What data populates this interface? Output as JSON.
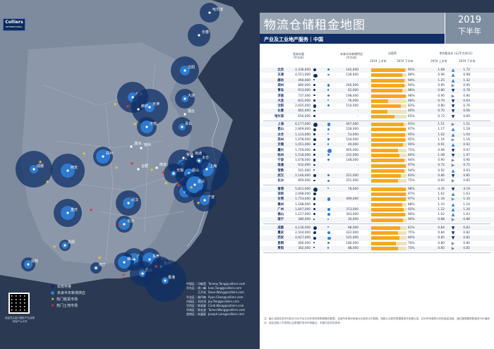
{
  "brand": {
    "name": "Colliers",
    "sub": "INTERNATIONAL"
  },
  "title": "物流仓储租金地图",
  "year": "2019",
  "half": "下半年",
  "subtitle": "产业及工业地产服务｜中国",
  "headers": {
    "stock": "现有存量\n(平方米)",
    "new": "未来半年新增供应\n(平方米)",
    "occ": "出租率",
    "occ_l1": "2019 上半年",
    "occ_l2": "2019 下半年",
    "rent": "季均租金价 (元/平方米/天)",
    "rent_l1": "2019 上半年",
    "rent_l2": "2019 下半年"
  },
  "colors": {
    "s1": "#0f2f66",
    "s2": "#2e7fd8",
    "bar": "#f5a81c",
    "barbg": "#ece3bc"
  },
  "groups": [
    {
      "rows": [
        {
          "city": "北京",
          "stock": "2,336,000",
          "new": "142,000",
          "occ": 0.95,
          "r1": "1.68",
          "r2": "1.72",
          "tr": "up"
        },
        {
          "city": "天津",
          "stock": "4,551,000",
          "new": "139,000",
          "occ": 0.88,
          "r1": "0.96",
          "r2": "0.98",
          "tr": "up"
        },
        {
          "city": "廊坊",
          "stock": "460,000",
          "new": "-",
          "occ": 0.94,
          "r1": "1.25",
          "r2": "1.32",
          "tr": "up"
        },
        {
          "city": "郑州",
          "stock": "880,000",
          "new": "266,000",
          "occ": 0.94,
          "r1": "0.90",
          "r2": "0.90",
          "tr": "eq"
        },
        {
          "city": "青岛",
          "stock": "913,000",
          "new": "62,000",
          "occ": 0.88,
          "r1": "0.80",
          "r2": "0.78",
          "tr": "dn"
        },
        {
          "city": "济南",
          "stock": "737,000",
          "new": "198,000",
          "occ": 0.98,
          "r1": "0.90",
          "r2": "0.90",
          "tr": "eq"
        },
        {
          "city": "大连",
          "stock": "831,000",
          "new": "76,000",
          "occ": 0.48,
          "r1": "0.70",
          "r2": "0.64",
          "tr": "dn"
        },
        {
          "city": "沈阳",
          "stock": "2,605,000",
          "new": "154,000",
          "occ": 0.83,
          "r1": "0.80",
          "r2": "0.76",
          "tr": "dn"
        },
        {
          "city": "长春",
          "stock": "865,000",
          "new": "-",
          "occ": 0.46,
          "r1": "0.70",
          "r2": "0.66",
          "tr": "dn"
        },
        {
          "city": "哈尔滨",
          "stock": "656,000",
          "new": "-",
          "occ": 0.65,
          "r1": "0.72",
          "r2": "0.69",
          "tr": "dn"
        }
      ]
    },
    {
      "rows": [
        {
          "city": "上海",
          "stock": "6,177,000",
          "new": "467,000",
          "occ": 0.91,
          "r1": "1.51",
          "r2": "1.51",
          "tr": "eq"
        },
        {
          "city": "昆山",
          "stock": "2,869,000",
          "new": "228,000",
          "occ": 0.97,
          "r1": "1.17",
          "r2": "1.18",
          "tr": "up"
        },
        {
          "city": "太仓",
          "stock": "1,123,000",
          "new": "53,000",
          "occ": 0.95,
          "r1": "1.02",
          "r2": "1.04",
          "tr": "up"
        },
        {
          "city": "苏州",
          "stock": "1,978,000",
          "new": "104,000",
          "occ": 0.95,
          "r1": "1.16",
          "r2": "1.16",
          "tr": "eq"
        },
        {
          "city": "无锡",
          "stock": "1,051,000",
          "new": "40,000",
          "occ": 0.9,
          "r1": "0.91",
          "r2": "0.92",
          "tr": "up"
        },
        {
          "city": "嘉兴",
          "stock": "1,759,000",
          "new": "905,000",
          "occ": 0.75,
          "r1": "0.98",
          "r2": "0.97",
          "tr": "dn"
        },
        {
          "city": "杭州",
          "stock": "1,518,000",
          "new": "231,000",
          "occ": 0.8,
          "r1": "1.08",
          "r2": "1.07",
          "tr": "dn"
        },
        {
          "city": "宁波",
          "stock": "1,678,000",
          "new": "148,000",
          "occ": 0.94,
          "r1": "0.90",
          "r2": "0.90",
          "tr": "eq"
        },
        {
          "city": "南通",
          "stock": "632,000",
          "new": "-",
          "occ": 0.97,
          "r1": "0.72",
          "r2": "0.72",
          "tr": "eq"
        },
        {
          "city": "常熟",
          "stock": "501,000",
          "new": "-",
          "occ": 0.94,
          "r1": "0.92",
          "r2": "0.93",
          "tr": "up"
        },
        {
          "city": "武汉",
          "stock": "2,146,000",
          "new": "221,000",
          "occ": 0.83,
          "r1": "0.86",
          "r2": "0.85",
          "tr": "dn"
        },
        {
          "city": "长沙",
          "stock": "859,000",
          "new": "251,000",
          "occ": 0.75,
          "r1": "0.85",
          "r2": "0.85",
          "tr": "eq"
        }
      ]
    },
    {
      "rows": [
        {
          "city": "香港",
          "stock": "5,811,000",
          "new": "78,000",
          "occ": 0.98,
          "r1": "4.35",
          "r2": "4.19",
          "tr": "dn"
        },
        {
          "city": "深圳",
          "stock": "2,098,000",
          "new": "-",
          "occ": 0.97,
          "r1": "1.62",
          "r2": "1.63",
          "tr": "up"
        },
        {
          "city": "东莞",
          "stock": "1,753,000",
          "new": "409,000",
          "occ": 0.97,
          "r1": "1.34",
          "r2": "1.34",
          "tr": "eq"
        },
        {
          "city": "惠州",
          "stock": "1,188,000",
          "new": "-",
          "occ": 0.88,
          "r1": "1.10",
          "r2": "1.16",
          "tr": "up"
        },
        {
          "city": "广州",
          "stock": "1,647,000",
          "new": "373,000",
          "occ": 0.92,
          "r1": "1.22",
          "r2": "1.26",
          "tr": "up"
        },
        {
          "city": "佛山",
          "stock": "1,217,000",
          "new": "343,000",
          "occ": 0.96,
          "r1": "1.02",
          "r2": "1.03",
          "tr": "up"
        },
        {
          "city": "南宁",
          "stock": "380,000",
          "new": "30,000",
          "occ": 0.9,
          "r1": "0.88",
          "r2": "0.88",
          "tr": "eq"
        }
      ]
    },
    {
      "rows": [
        {
          "city": "成都",
          "stock": "4,136,000",
          "new": "98,000",
          "occ": 0.81,
          "r1": "0.84",
          "r2": "0.83",
          "tr": "dn"
        },
        {
          "city": "重庆",
          "stock": "2,504,000",
          "new": "422,000",
          "occ": 0.75,
          "r1": "0.84",
          "r2": "0.82",
          "tr": "dn"
        },
        {
          "city": "西安",
          "stock": "2,627,000",
          "new": "525,000",
          "occ": 0.8,
          "r1": "0.85",
          "r2": "0.82",
          "tr": "dn"
        },
        {
          "city": "昆明",
          "stock": "460,000",
          "new": "180,000",
          "occ": 0.7,
          "r1": "0.80",
          "r2": "0.80",
          "tr": "eq"
        },
        {
          "city": "贵阳",
          "stock": "302,000",
          "new": "88,000",
          "occ": 0.75,
          "r1": "0.85",
          "r2": "0.85",
          "tr": "eq"
        }
      ]
    }
  ],
  "legend": [
    {
      "label": "现有存量",
      "type": "dot",
      "color": "#0f2f66"
    },
    {
      "label": "未来半年新增供应",
      "type": "dot",
      "color": "#2e7fd8"
    },
    {
      "label": "热门租赁市场",
      "type": "star",
      "color": "#e8c13c"
    },
    {
      "label": "热门土地市场",
      "type": "star",
      "color": "#d83a3a"
    }
  ],
  "contacts": [
    {
      "name": "中国区｜冯敏茵",
      "email": "Tommy.Tang@colliers.com"
    },
    {
      "name": "华东区｜胡一峰",
      "email": "Ivan.Tang@colliers.com"
    },
    {
      "name": "王开忠",
      "email": "Dave.Wang@colliers.com"
    },
    {
      "name": "华北区｜谢丹梅",
      "email": "Ryan.Chen@colliers.com"
    },
    {
      "name": "对接区｜邓庆涛",
      "email": "Joy.Teng@colliers.com"
    },
    {
      "name": "华西区｜陈雨豪",
      "email": "Cindi.Wang@colliers.com"
    },
    {
      "name": "华南区｜陈宏波",
      "email": "Tomer.Wang@colliers.com"
    },
    {
      "name": "香港区｜朱嘉豪",
      "email": "Joseph.Lam@colliers.com"
    }
  ],
  "qr_caption": "欢迎关注高力国际产业及物流地产公众号",
  "note": "注：截止该报告发布时统计均为不含已对外物流有限储备的数据，包括所有单位和营业仓库的水平数据。指数以当前的数据基准作依据为准，并对所有建筑分布的租金选取，通过管理建筑数值进行价值测评，指定选取人员参照以及数据的发布时间截点。本图内容仅供参考。",
  "cities": [
    {
      "n": "哈尔滨",
      "s": 14,
      "f": 0,
      "label_dx": 6,
      "label_dy": -6
    },
    {
      "n": "长春",
      "s": 16,
      "f": 0
    },
    {
      "n": "沈阳",
      "s": 20,
      "f": 7
    },
    {
      "n": "大连",
      "s": 14,
      "f": 5
    },
    {
      "n": "北京",
      "s": 22,
      "f": 7
    },
    {
      "n": "天津",
      "s": 26,
      "f": 7
    },
    {
      "n": "廊坊",
      "s": 0,
      "f": 0
    },
    {
      "n": "济南",
      "s": 14,
      "f": 9
    },
    {
      "n": "青岛",
      "s": 14,
      "f": 5
    },
    {
      "n": "郑州",
      "s": 14,
      "f": 10
    },
    {
      "n": "西安",
      "s": 24,
      "f": 10
    },
    {
      "n": "徐州",
      "s": 0,
      "f": 0
    },
    {
      "n": "合肥",
      "s": 0,
      "f": 0
    },
    {
      "n": "南京",
      "s": 0,
      "f": 0
    },
    {
      "n": "苏州",
      "s": 20,
      "f": 6
    },
    {
      "n": "上海",
      "s": 32,
      "f": 10
    },
    {
      "n": "太仓",
      "s": 14,
      "f": 4
    },
    {
      "n": "昆山",
      "s": 20,
      "f": 7
    },
    {
      "n": "无锡",
      "s": 14,
      "f": 4
    },
    {
      "n": "杭州",
      "s": 16,
      "f": 8
    },
    {
      "n": "嘉兴",
      "s": 18,
      "f": 12
    },
    {
      "n": "宁波",
      "s": 16,
      "f": 7
    },
    {
      "n": "武汉",
      "s": 18,
      "f": 8
    },
    {
      "n": "长沙",
      "s": 12,
      "f": 8
    },
    {
      "n": "成都",
      "s": 26,
      "f": 6
    },
    {
      "n": "重庆",
      "s": 20,
      "f": 10
    },
    {
      "n": "贵阳",
      "s": 8,
      "f": 5
    },
    {
      "n": "昆明",
      "s": 10,
      "f": 6
    },
    {
      "n": "南宁",
      "s": 8,
      "f": 3
    },
    {
      "n": "广州",
      "s": 16,
      "f": 9
    },
    {
      "n": "佛山",
      "s": 14,
      "f": 9
    },
    {
      "n": "东莞",
      "s": 16,
      "f": 10
    },
    {
      "n": "深圳",
      "s": 18,
      "f": 5
    },
    {
      "n": "惠州",
      "s": 14,
      "f": 0
    },
    {
      "n": "香港",
      "s": 30,
      "f": 5
    },
    {
      "n": "烟台",
      "s": 0,
      "f": 0
    },
    {
      "n": "南通",
      "s": 0,
      "f": 0
    },
    {
      "n": "常熟",
      "s": 0,
      "f": 0
    },
    {
      "n": "漯河",
      "s": 0,
      "f": 0
    }
  ]
}
